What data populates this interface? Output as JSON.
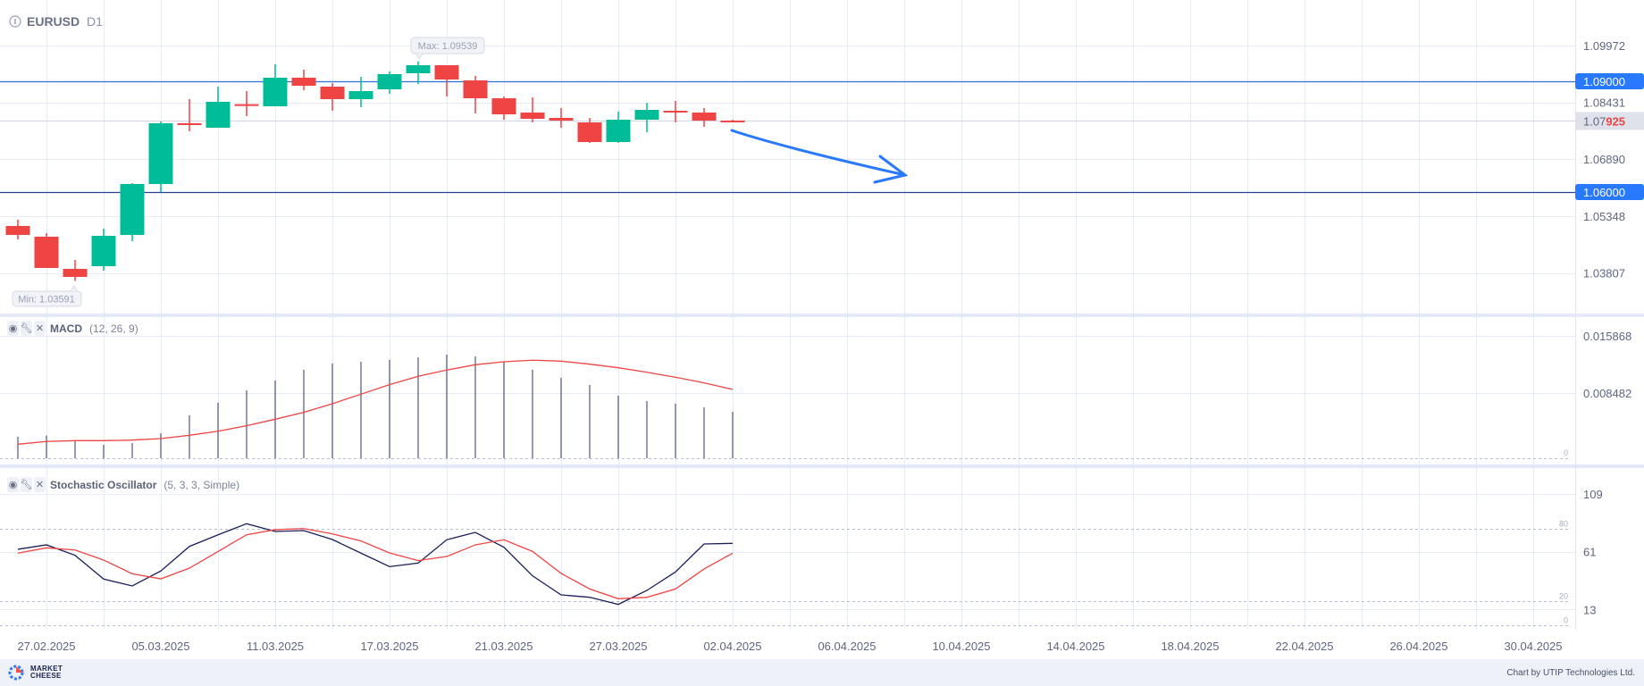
{
  "header": {
    "symbol": "EURUSD",
    "timeframe": "D1"
  },
  "annotations": {
    "max_label": "Max: 1.09539",
    "min_label": "Min: 1.03591"
  },
  "macd_panel": {
    "name": "MACD",
    "params": "(12, 26, 9)"
  },
  "stoch_panel": {
    "name": "Stochastic Oscillator",
    "params": "(5, 3, 3, Simple)"
  },
  "footer": {
    "logo_text_1": "MARKET",
    "logo_text_2": "CHEESE",
    "credit": "Chart by UTIP Technologies Ltd."
  },
  "colors": {
    "up": "#00bc98",
    "down": "#ef4444",
    "level": "#2a6fdb",
    "tag": "#2979ff",
    "histogram": "#2d3556",
    "stoch_k": "#1a1f5c",
    "signal": "#ef4444"
  },
  "price_axis": {
    "labels": [
      "1.09972",
      "1.08431",
      "1.06890",
      "1.05348",
      "1.03807"
    ],
    "levels": [
      "1.09000",
      "1.06000"
    ],
    "current_prefix": "1.07",
    "current_suffix": "925"
  },
  "macd_axis": {
    "labels": [
      "0.015868",
      "0.008482"
    ],
    "zero": "0"
  },
  "stoch_axis": {
    "labels": [
      "109",
      "61",
      "13"
    ],
    "levels": [
      "80",
      "20",
      "0"
    ]
  },
  "date_labels": [
    "27.02.2025",
    "05.03.2025",
    "11.03.2025",
    "17.03.2025",
    "21.03.2025",
    "27.03.2025",
    "02.04.2025",
    "06.04.2025",
    "10.04.2025",
    "14.04.2025",
    "18.04.2025",
    "22.04.2025",
    "26.04.2025",
    "30.04.2025"
  ],
  "chart_data": [
    {
      "type": "candlestick",
      "title": "EURUSD D1",
      "ylim": [
        1.0335,
        1.1015
      ],
      "levels": [
        1.09,
        1.06
      ],
      "current_price": 1.07925,
      "max": 1.09539,
      "min": 1.03591,
      "forecast_arrow": {
        "from": [
          "02.04.2025",
          1.0802
        ],
        "to": [
          "08.04.2025",
          1.0685
        ]
      },
      "dates": [
        "26.02",
        "27.02",
        "28.02",
        "03.03",
        "04.03",
        "05.03",
        "06.03",
        "07.03",
        "10.03",
        "11.03",
        "12.03",
        "13.03",
        "14.03",
        "17.03",
        "18.03",
        "19.03",
        "20.03",
        "21.03",
        "24.03",
        "25.03",
        "26.03",
        "27.03",
        "28.03",
        "31.03",
        "01.04",
        "02.04"
      ],
      "ohlc": [
        [
          1.05081,
          1.05251,
          1.04718,
          1.04839
        ],
        [
          1.04791,
          1.04888,
          1.03944,
          1.03944
        ],
        [
          1.0392,
          1.04162,
          1.03591,
          1.03702
        ],
        [
          1.03993,
          1.05009,
          1.03872,
          1.04815
        ],
        [
          1.04839,
          1.06242,
          1.0467,
          1.06218
        ],
        [
          1.06218,
          1.07911,
          1.06,
          1.07863
        ],
        [
          1.07863,
          1.08516,
          1.07645,
          1.07815
        ],
        [
          1.07742,
          1.08855,
          1.07742,
          1.08444
        ],
        [
          1.0838,
          1.08734,
          1.08057,
          1.08371
        ],
        [
          1.08323,
          1.0946,
          1.08323,
          1.09097
        ],
        [
          1.09097,
          1.09314,
          1.08758,
          1.08879
        ],
        [
          1.08855,
          1.08952,
          1.08202,
          1.08516
        ],
        [
          1.08516,
          1.09121,
          1.08298,
          1.08734
        ],
        [
          1.08782,
          1.09266,
          1.08661,
          1.09194
        ],
        [
          1.09218,
          1.09539,
          1.08927,
          1.09435
        ],
        [
          1.09435,
          1.09435,
          1.08589,
          1.09048
        ],
        [
          1.09024,
          1.09145,
          1.08129,
          1.0854
        ],
        [
          1.0854,
          1.08589,
          1.0796,
          1.08105
        ],
        [
          1.08153,
          1.08565,
          1.07887,
          1.07984
        ],
        [
          1.08008,
          1.08274,
          1.07742,
          1.07936
        ],
        [
          1.07887,
          1.08008,
          1.07331,
          1.07355
        ],
        [
          1.07355,
          1.08178,
          1.07331,
          1.0796
        ],
        [
          1.0796,
          1.08419,
          1.07621,
          1.08226
        ],
        [
          1.08202,
          1.08468,
          1.07887,
          1.08178
        ],
        [
          1.08153,
          1.08274,
          1.07766,
          1.07936
        ],
        [
          1.07936,
          1.0796,
          1.07925,
          1.07925
        ]
      ]
    },
    {
      "type": "bar+line",
      "title": "MACD (12, 26, 9)",
      "ylim": [
        0,
        0.015868
      ],
      "histogram": [
        0.00283,
        0.00298,
        0.00233,
        0.00179,
        0.00202,
        0.00329,
        0.0056,
        0.00721,
        0.00883,
        0.0101,
        0.01148,
        0.01229,
        0.01252,
        0.01275,
        0.0131,
        0.01344,
        0.01321,
        0.01252,
        0.01148,
        0.01044,
        0.00952,
        0.00814,
        0.00744,
        0.0071,
        0.00664,
        0.00606
      ],
      "signal": [
        0.00187,
        0.00222,
        0.00233,
        0.00233,
        0.0024,
        0.0026,
        0.00302,
        0.00355,
        0.00425,
        0.0051,
        0.00598,
        0.0071,
        0.00833,
        0.00956,
        0.01064,
        0.01145,
        0.01214,
        0.01252,
        0.01272,
        0.0126,
        0.01221,
        0.01175,
        0.01117,
        0.01052,
        0.00979,
        0.00894
      ]
    },
    {
      "type": "line",
      "title": "Stochastic Oscillator (5, 3, 3, Simple)",
      "ylim": [
        0,
        109
      ],
      "levels": [
        80,
        20,
        0
      ],
      "series": [
        {
          "name": "%K",
          "values": [
            63.0,
            66.7,
            58.0,
            38.3,
            32.6,
            45.0,
            65.4,
            75.0,
            84.2,
            77.8,
            78.5,
            71.1,
            59.8,
            48.6,
            51.6,
            70.9,
            77.0,
            64.7,
            41.0,
            25.2,
            23.2,
            17.3,
            28.9,
            44.2,
            67.4,
            67.9
          ]
        },
        {
          "name": "%D",
          "values": [
            59.8,
            64.2,
            62.4,
            54.1,
            42.7,
            38.5,
            47.4,
            61.2,
            75.0,
            79.3,
            80.2,
            75.8,
            69.9,
            60.0,
            53.6,
            57.0,
            66.7,
            70.9,
            61.2,
            43.0,
            30.1,
            22.0,
            23.2,
            30.1,
            46.7,
            59.8
          ]
        }
      ]
    }
  ]
}
